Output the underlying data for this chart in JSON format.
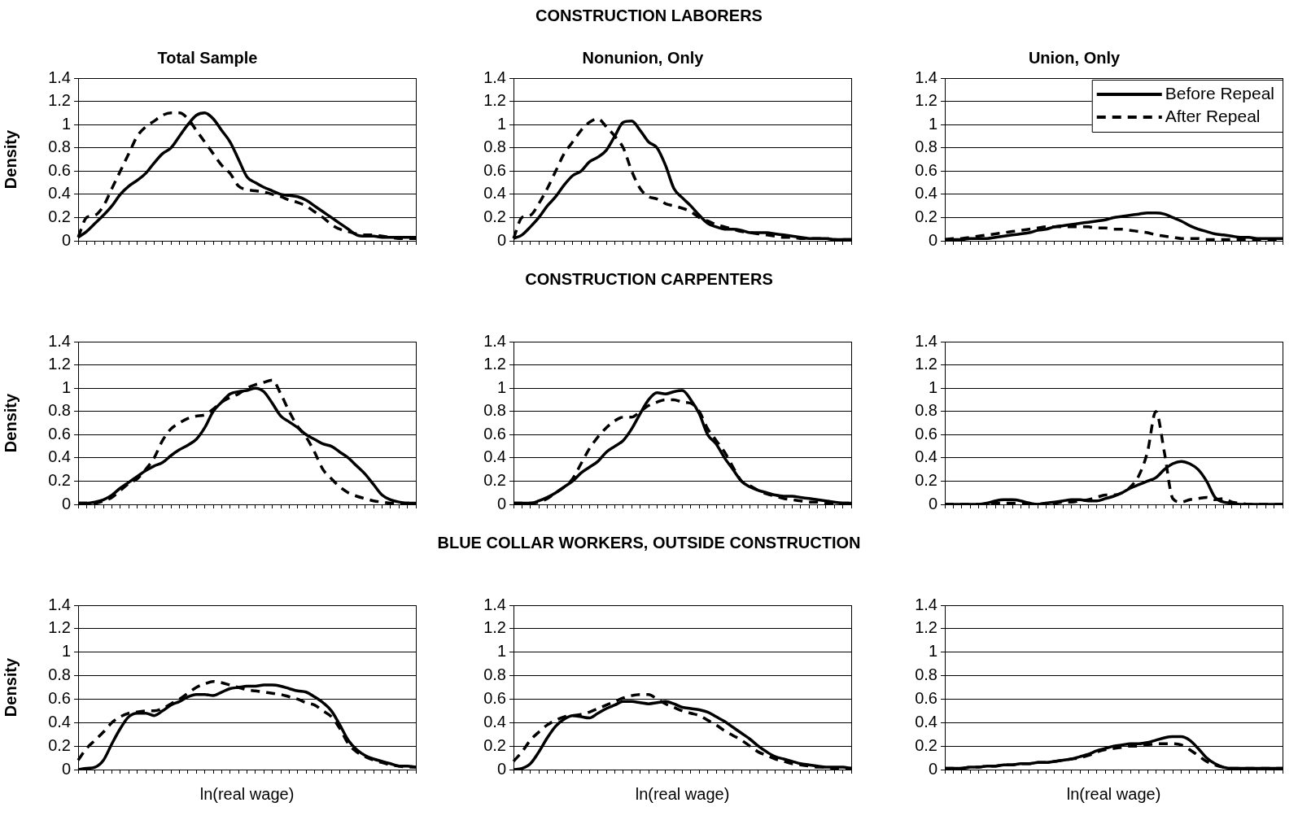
{
  "chart_data": [
    {
      "type": "line",
      "title": "Total Sample",
      "ylabel": "Density",
      "annotations": [
        "CONSTRUCTION LABORERS"
      ],
      "categories": [
        null,
        null,
        null,
        null,
        null,
        null,
        null,
        null,
        null,
        null,
        null,
        null,
        null,
        null,
        null,
        null,
        null,
        null,
        null,
        null,
        null,
        null,
        null,
        null,
        null,
        null,
        null,
        null,
        null,
        null,
        null,
        null,
        null,
        null,
        null,
        null,
        null,
        null,
        null,
        null,
        null
      ],
      "ylim": [
        0,
        1.4
      ],
      "yticks": [
        0,
        0.2,
        0.4,
        0.6,
        0.8,
        1,
        1.2,
        1.4
      ],
      "grid": "y",
      "marker": "none",
      "tick_labels": "y",
      "series": [
        {
          "color": "#000000",
          "line_style": "solid",
          "values": [
            0.03,
            0.08,
            0.15,
            0.22,
            0.3,
            0.4,
            0.47,
            0.52,
            0.58,
            0.67,
            0.75,
            0.8,
            0.9,
            1.0,
            1.08,
            1.1,
            1.05,
            0.95,
            0.85,
            0.7,
            0.55,
            0.5,
            0.46,
            0.43,
            0.4,
            0.39,
            0.38,
            0.35,
            0.3,
            0.25,
            0.2,
            0.15,
            0.1,
            0.05,
            0.04,
            0.04,
            0.03,
            0.03,
            0.03,
            0.03,
            0.03
          ]
        },
        {
          "color": "#000000",
          "line_style": "dashed",
          "values": [
            0.03,
            0.2,
            0.22,
            0.3,
            0.45,
            0.6,
            0.75,
            0.9,
            0.98,
            1.03,
            1.08,
            1.1,
            1.1,
            1.05,
            0.95,
            0.85,
            0.75,
            0.65,
            0.58,
            0.47,
            0.44,
            0.43,
            0.42,
            0.4,
            0.38,
            0.35,
            0.33,
            0.3,
            0.25,
            0.2,
            0.14,
            0.1,
            0.08,
            0.06,
            0.05,
            0.05,
            0.04,
            0.03,
            0.02,
            0.02,
            0.02
          ]
        }
      ]
    },
    {
      "type": "line",
      "title": "Nonunion, Only",
      "categories": [
        null,
        null,
        null,
        null,
        null,
        null,
        null,
        null,
        null,
        null,
        null,
        null,
        null,
        null,
        null,
        null,
        null,
        null,
        null,
        null,
        null,
        null,
        null,
        null,
        null,
        null,
        null,
        null,
        null,
        null,
        null,
        null,
        null,
        null,
        null,
        null,
        null,
        null,
        null,
        null,
        null
      ],
      "ylim": [
        0,
        1.4
      ],
      "yticks": [
        0,
        0.2,
        0.4,
        0.6,
        0.8,
        1,
        1.2,
        1.4
      ],
      "grid": "y",
      "marker": "none",
      "tick_labels": "y",
      "series": [
        {
          "color": "#000000",
          "line_style": "solid",
          "values": [
            0.02,
            0.05,
            0.12,
            0.2,
            0.3,
            0.38,
            0.48,
            0.56,
            0.6,
            0.68,
            0.72,
            0.78,
            0.9,
            1.02,
            1.03,
            0.95,
            0.85,
            0.8,
            0.65,
            0.45,
            0.37,
            0.3,
            0.22,
            0.15,
            0.12,
            0.1,
            0.1,
            0.09,
            0.07,
            0.07,
            0.07,
            0.06,
            0.05,
            0.04,
            0.03,
            0.02,
            0.02,
            0.02,
            0.01,
            0.01,
            0.01
          ]
        },
        {
          "color": "#000000",
          "line_style": "dashed",
          "values": [
            0.02,
            0.2,
            0.22,
            0.32,
            0.45,
            0.6,
            0.75,
            0.85,
            0.95,
            1.02,
            1.05,
            0.98,
            0.9,
            0.8,
            0.6,
            0.45,
            0.38,
            0.36,
            0.32,
            0.3,
            0.28,
            0.25,
            0.2,
            0.17,
            0.14,
            0.12,
            0.1,
            0.08,
            0.07,
            0.06,
            0.05,
            0.04,
            0.03,
            0.03,
            0.02,
            0.02,
            0.02,
            0.02,
            0.01,
            0.01,
            0.01
          ]
        }
      ]
    },
    {
      "type": "line",
      "title": "Union, Only",
      "legend": "top right",
      "categories": [
        null,
        null,
        null,
        null,
        null,
        null,
        null,
        null,
        null,
        null,
        null,
        null,
        null,
        null,
        null,
        null,
        null,
        null,
        null,
        null,
        null,
        null,
        null,
        null,
        null,
        null,
        null,
        null,
        null,
        null,
        null,
        null,
        null,
        null,
        null,
        null,
        null,
        null,
        null,
        null,
        null
      ],
      "ylim": [
        0,
        1.4
      ],
      "yticks": [
        0,
        0.2,
        0.4,
        0.6,
        0.8,
        1,
        1.2,
        1.4
      ],
      "grid": "y",
      "marker": "none",
      "tick_labels": "y",
      "series": [
        {
          "name": "Before Repeal",
          "color": "#000000",
          "line_style": "solid",
          "values": [
            0.01,
            0.01,
            0.01,
            0.02,
            0.02,
            0.02,
            0.03,
            0.04,
            0.05,
            0.06,
            0.07,
            0.09,
            0.1,
            0.12,
            0.13,
            0.14,
            0.15,
            0.16,
            0.17,
            0.18,
            0.2,
            0.21,
            0.22,
            0.23,
            0.24,
            0.24,
            0.23,
            0.2,
            0.17,
            0.13,
            0.1,
            0.08,
            0.06,
            0.05,
            0.04,
            0.03,
            0.03,
            0.02,
            0.02,
            0.02,
            0.02
          ]
        },
        {
          "name": "After Repeal",
          "color": "#000000",
          "line_style": "dashed",
          "values": [
            0.01,
            0.02,
            0.02,
            0.03,
            0.04,
            0.05,
            0.06,
            0.07,
            0.08,
            0.09,
            0.1,
            0.11,
            0.12,
            0.12,
            0.12,
            0.12,
            0.12,
            0.12,
            0.11,
            0.11,
            0.1,
            0.1,
            0.09,
            0.08,
            0.07,
            0.05,
            0.04,
            0.03,
            0.02,
            0.02,
            0.02,
            0.01,
            0.01,
            0.01,
            0.01,
            0.01,
            0.01,
            0.01,
            0.01,
            0.01,
            0.01
          ]
        }
      ]
    },
    {
      "type": "line",
      "ylabel": "Density",
      "annotations": [
        "CONSTRUCTION CARPENTERS"
      ],
      "categories": [
        null,
        null,
        null,
        null,
        null,
        null,
        null,
        null,
        null,
        null,
        null,
        null,
        null,
        null,
        null,
        null,
        null,
        null,
        null,
        null,
        null,
        null,
        null,
        null,
        null,
        null,
        null,
        null,
        null,
        null,
        null,
        null,
        null,
        null,
        null,
        null,
        null,
        null,
        null,
        null,
        null
      ],
      "ylim": [
        0,
        1.4
      ],
      "yticks": [
        0,
        0.2,
        0.4,
        0.6,
        0.8,
        1,
        1.2,
        1.4
      ],
      "grid": "y",
      "marker": "none",
      "tick_labels": "y",
      "series": [
        {
          "color": "#000000",
          "line_style": "solid",
          "values": [
            0.01,
            0.01,
            0.02,
            0.04,
            0.08,
            0.14,
            0.19,
            0.24,
            0.29,
            0.33,
            0.36,
            0.42,
            0.47,
            0.51,
            0.56,
            0.66,
            0.8,
            0.88,
            0.95,
            0.97,
            0.98,
            1.0,
            0.97,
            0.87,
            0.76,
            0.71,
            0.66,
            0.6,
            0.56,
            0.52,
            0.5,
            0.45,
            0.4,
            0.33,
            0.26,
            0.17,
            0.08,
            0.04,
            0.02,
            0.01,
            0.01
          ]
        },
        {
          "color": "#000000",
          "line_style": "dashed",
          "values": [
            0.01,
            0.01,
            0.01,
            0.03,
            0.06,
            0.12,
            0.18,
            0.22,
            0.3,
            0.4,
            0.55,
            0.65,
            0.7,
            0.74,
            0.76,
            0.77,
            0.82,
            0.88,
            0.92,
            0.95,
            1.0,
            1.03,
            1.05,
            1.07,
            0.95,
            0.8,
            0.67,
            0.58,
            0.45,
            0.3,
            0.22,
            0.15,
            0.1,
            0.07,
            0.05,
            0.03,
            0.02,
            0.01,
            0.01,
            0.01,
            0.01
          ]
        }
      ]
    },
    {
      "type": "line",
      "categories": [
        null,
        null,
        null,
        null,
        null,
        null,
        null,
        null,
        null,
        null,
        null,
        null,
        null,
        null,
        null,
        null,
        null,
        null,
        null,
        null,
        null,
        null,
        null,
        null,
        null,
        null,
        null,
        null,
        null,
        null,
        null,
        null,
        null,
        null,
        null,
        null,
        null,
        null,
        null,
        null,
        null
      ],
      "ylim": [
        0,
        1.4
      ],
      "yticks": [
        0,
        0.2,
        0.4,
        0.6,
        0.8,
        1,
        1.2,
        1.4
      ],
      "grid": "y",
      "marker": "none",
      "tick_labels": "y",
      "series": [
        {
          "color": "#000000",
          "line_style": "solid",
          "values": [
            0.01,
            0.01,
            0.01,
            0.03,
            0.06,
            0.1,
            0.15,
            0.2,
            0.27,
            0.32,
            0.37,
            0.45,
            0.5,
            0.55,
            0.65,
            0.78,
            0.9,
            0.96,
            0.95,
            0.97,
            0.98,
            0.9,
            0.78,
            0.6,
            0.52,
            0.4,
            0.3,
            0.2,
            0.15,
            0.12,
            0.1,
            0.08,
            0.07,
            0.07,
            0.06,
            0.05,
            0.04,
            0.03,
            0.02,
            0.01,
            0.01
          ]
        },
        {
          "color": "#000000",
          "line_style": "dashed",
          "values": [
            0.01,
            0.01,
            0.01,
            0.02,
            0.05,
            0.1,
            0.15,
            0.22,
            0.35,
            0.48,
            0.58,
            0.66,
            0.72,
            0.75,
            0.75,
            0.8,
            0.85,
            0.88,
            0.9,
            0.9,
            0.88,
            0.87,
            0.8,
            0.65,
            0.55,
            0.45,
            0.32,
            0.2,
            0.16,
            0.12,
            0.09,
            0.07,
            0.05,
            0.04,
            0.03,
            0.02,
            0.02,
            0.01,
            0.01,
            0.01,
            0.01
          ]
        }
      ]
    },
    {
      "type": "line",
      "categories": [
        null,
        null,
        null,
        null,
        null,
        null,
        null,
        null,
        null,
        null,
        null,
        null,
        null,
        null,
        null,
        null,
        null,
        null,
        null,
        null,
        null,
        null,
        null,
        null,
        null,
        null,
        null,
        null,
        null,
        null,
        null,
        null,
        null,
        null,
        null,
        null,
        null,
        null,
        null,
        null,
        null
      ],
      "ylim": [
        0,
        1.4
      ],
      "yticks": [
        0,
        0.2,
        0.4,
        0.6,
        0.8,
        1,
        1.2,
        1.4
      ],
      "grid": "y",
      "marker": "none",
      "tick_labels": "y",
      "series": [
        {
          "color": "#000000",
          "line_style": "solid",
          "values": [
            0,
            0,
            0,
            0,
            0,
            0.01,
            0.03,
            0.04,
            0.04,
            0.03,
            0.01,
            0,
            0.01,
            0.02,
            0.03,
            0.04,
            0.04,
            0.03,
            0.03,
            0.05,
            0.07,
            0.1,
            0.14,
            0.17,
            0.2,
            0.23,
            0.3,
            0.35,
            0.37,
            0.35,
            0.3,
            0.2,
            0.06,
            0.02,
            0.01,
            0,
            0,
            0,
            0,
            0,
            0
          ]
        },
        {
          "color": "#000000",
          "line_style": "dashed",
          "values": [
            0,
            0,
            0,
            0,
            0,
            0,
            0.01,
            0.01,
            0.01,
            0.01,
            0.01,
            0,
            0.01,
            0.01,
            0.02,
            0.02,
            0.03,
            0.04,
            0.06,
            0.08,
            0.08,
            0.1,
            0.15,
            0.25,
            0.45,
            0.8,
            0.45,
            0.05,
            0.02,
            0.04,
            0.05,
            0.06,
            0.04,
            0.05,
            0.02,
            0.01,
            0,
            0,
            0,
            0,
            0
          ]
        }
      ]
    },
    {
      "type": "line",
      "ylabel": "Density",
      "xlabel": "ln(real wage)",
      "annotations": [
        "BLUE COLLAR WORKERS, OUTSIDE CONSTRUCTION"
      ],
      "categories": [
        null,
        null,
        null,
        null,
        null,
        null,
        null,
        null,
        null,
        null,
        null,
        null,
        null,
        null,
        null,
        null,
        null,
        null,
        null,
        null,
        null,
        null,
        null,
        null,
        null,
        null,
        null,
        null,
        null,
        null,
        null,
        null,
        null,
        null,
        null,
        null,
        null,
        null,
        null,
        null,
        null
      ],
      "ylim": [
        0,
        1.4
      ],
      "yticks": [
        0,
        0.2,
        0.4,
        0.6,
        0.8,
        1,
        1.2,
        1.4
      ],
      "grid": "y",
      "marker": "none",
      "tick_labels": "y",
      "series": [
        {
          "color": "#000000",
          "line_style": "solid",
          "values": [
            0,
            0.01,
            0.02,
            0.08,
            0.22,
            0.35,
            0.45,
            0.48,
            0.48,
            0.46,
            0.5,
            0.55,
            0.58,
            0.62,
            0.64,
            0.64,
            0.63,
            0.66,
            0.69,
            0.7,
            0.71,
            0.71,
            0.72,
            0.72,
            0.71,
            0.69,
            0.67,
            0.66,
            0.62,
            0.57,
            0.5,
            0.38,
            0.25,
            0.17,
            0.12,
            0.09,
            0.07,
            0.05,
            0.03,
            0.03,
            0.02
          ]
        },
        {
          "color": "#000000",
          "line_style": "dashed",
          "values": [
            0.08,
            0.18,
            0.25,
            0.32,
            0.4,
            0.45,
            0.48,
            0.49,
            0.5,
            0.5,
            0.52,
            0.56,
            0.6,
            0.65,
            0.7,
            0.73,
            0.75,
            0.74,
            0.72,
            0.7,
            0.68,
            0.67,
            0.66,
            0.65,
            0.64,
            0.62,
            0.6,
            0.57,
            0.55,
            0.5,
            0.45,
            0.35,
            0.22,
            0.15,
            0.11,
            0.08,
            0.06,
            0.04,
            0.03,
            0.02,
            0.02
          ]
        }
      ]
    },
    {
      "type": "line",
      "xlabel": "ln(real wage)",
      "categories": [
        null,
        null,
        null,
        null,
        null,
        null,
        null,
        null,
        null,
        null,
        null,
        null,
        null,
        null,
        null,
        null,
        null,
        null,
        null,
        null,
        null,
        null,
        null,
        null,
        null,
        null,
        null,
        null,
        null,
        null,
        null,
        null,
        null,
        null,
        null,
        null,
        null,
        null,
        null,
        null,
        null
      ],
      "ylim": [
        0,
        1.4
      ],
      "yticks": [
        0,
        0.2,
        0.4,
        0.6,
        0.8,
        1,
        1.2,
        1.4
      ],
      "grid": "y",
      "marker": "none",
      "tick_labels": "y",
      "series": [
        {
          "color": "#000000",
          "line_style": "solid",
          "values": [
            0,
            0.01,
            0.05,
            0.15,
            0.27,
            0.37,
            0.43,
            0.46,
            0.45,
            0.44,
            0.48,
            0.52,
            0.55,
            0.58,
            0.58,
            0.57,
            0.56,
            0.57,
            0.58,
            0.56,
            0.53,
            0.52,
            0.51,
            0.49,
            0.45,
            0.41,
            0.36,
            0.31,
            0.26,
            0.2,
            0.15,
            0.11,
            0.09,
            0.07,
            0.05,
            0.04,
            0.03,
            0.02,
            0.02,
            0.02,
            0.01
          ]
        },
        {
          "color": "#000000",
          "line_style": "dashed",
          "values": [
            0.07,
            0.15,
            0.25,
            0.32,
            0.38,
            0.42,
            0.45,
            0.46,
            0.47,
            0.49,
            0.52,
            0.55,
            0.58,
            0.61,
            0.63,
            0.64,
            0.64,
            0.6,
            0.56,
            0.53,
            0.5,
            0.48,
            0.46,
            0.42,
            0.38,
            0.33,
            0.29,
            0.25,
            0.2,
            0.15,
            0.12,
            0.09,
            0.07,
            0.05,
            0.04,
            0.03,
            0.02,
            0.02,
            0.01,
            0.01,
            0.01
          ]
        }
      ]
    },
    {
      "type": "line",
      "xlabel": "ln(real wage)",
      "categories": [
        null,
        null,
        null,
        null,
        null,
        null,
        null,
        null,
        null,
        null,
        null,
        null,
        null,
        null,
        null,
        null,
        null,
        null,
        null,
        null,
        null,
        null,
        null,
        null,
        null,
        null,
        null,
        null,
        null,
        null,
        null,
        null,
        null,
        null,
        null,
        null,
        null,
        null,
        null,
        null,
        null
      ],
      "ylim": [
        0,
        1.4
      ],
      "yticks": [
        0,
        0.2,
        0.4,
        0.6,
        0.8,
        1,
        1.2,
        1.4
      ],
      "grid": "y",
      "marker": "none",
      "tick_labels": "y",
      "series": [
        {
          "color": "#000000",
          "line_style": "solid",
          "values": [
            0.01,
            0.01,
            0.01,
            0.02,
            0.02,
            0.03,
            0.03,
            0.04,
            0.04,
            0.05,
            0.05,
            0.06,
            0.06,
            0.07,
            0.08,
            0.09,
            0.11,
            0.13,
            0.16,
            0.18,
            0.2,
            0.21,
            0.22,
            0.22,
            0.23,
            0.25,
            0.27,
            0.28,
            0.28,
            0.25,
            0.18,
            0.1,
            0.05,
            0.02,
            0.01,
            0.01,
            0.01,
            0.01,
            0.01,
            0.01,
            0.01
          ]
        },
        {
          "color": "#000000",
          "line_style": "dashed",
          "values": [
            0.01,
            0.01,
            0.01,
            0.02,
            0.02,
            0.03,
            0.03,
            0.04,
            0.04,
            0.05,
            0.05,
            0.06,
            0.06,
            0.07,
            0.08,
            0.09,
            0.1,
            0.12,
            0.15,
            0.17,
            0.18,
            0.19,
            0.2,
            0.2,
            0.21,
            0.22,
            0.22,
            0.22,
            0.21,
            0.17,
            0.12,
            0.07,
            0.04,
            0.02,
            0.01,
            0.01,
            0.01,
            0.01,
            0.01,
            0.01,
            0.01
          ]
        }
      ]
    }
  ]
}
